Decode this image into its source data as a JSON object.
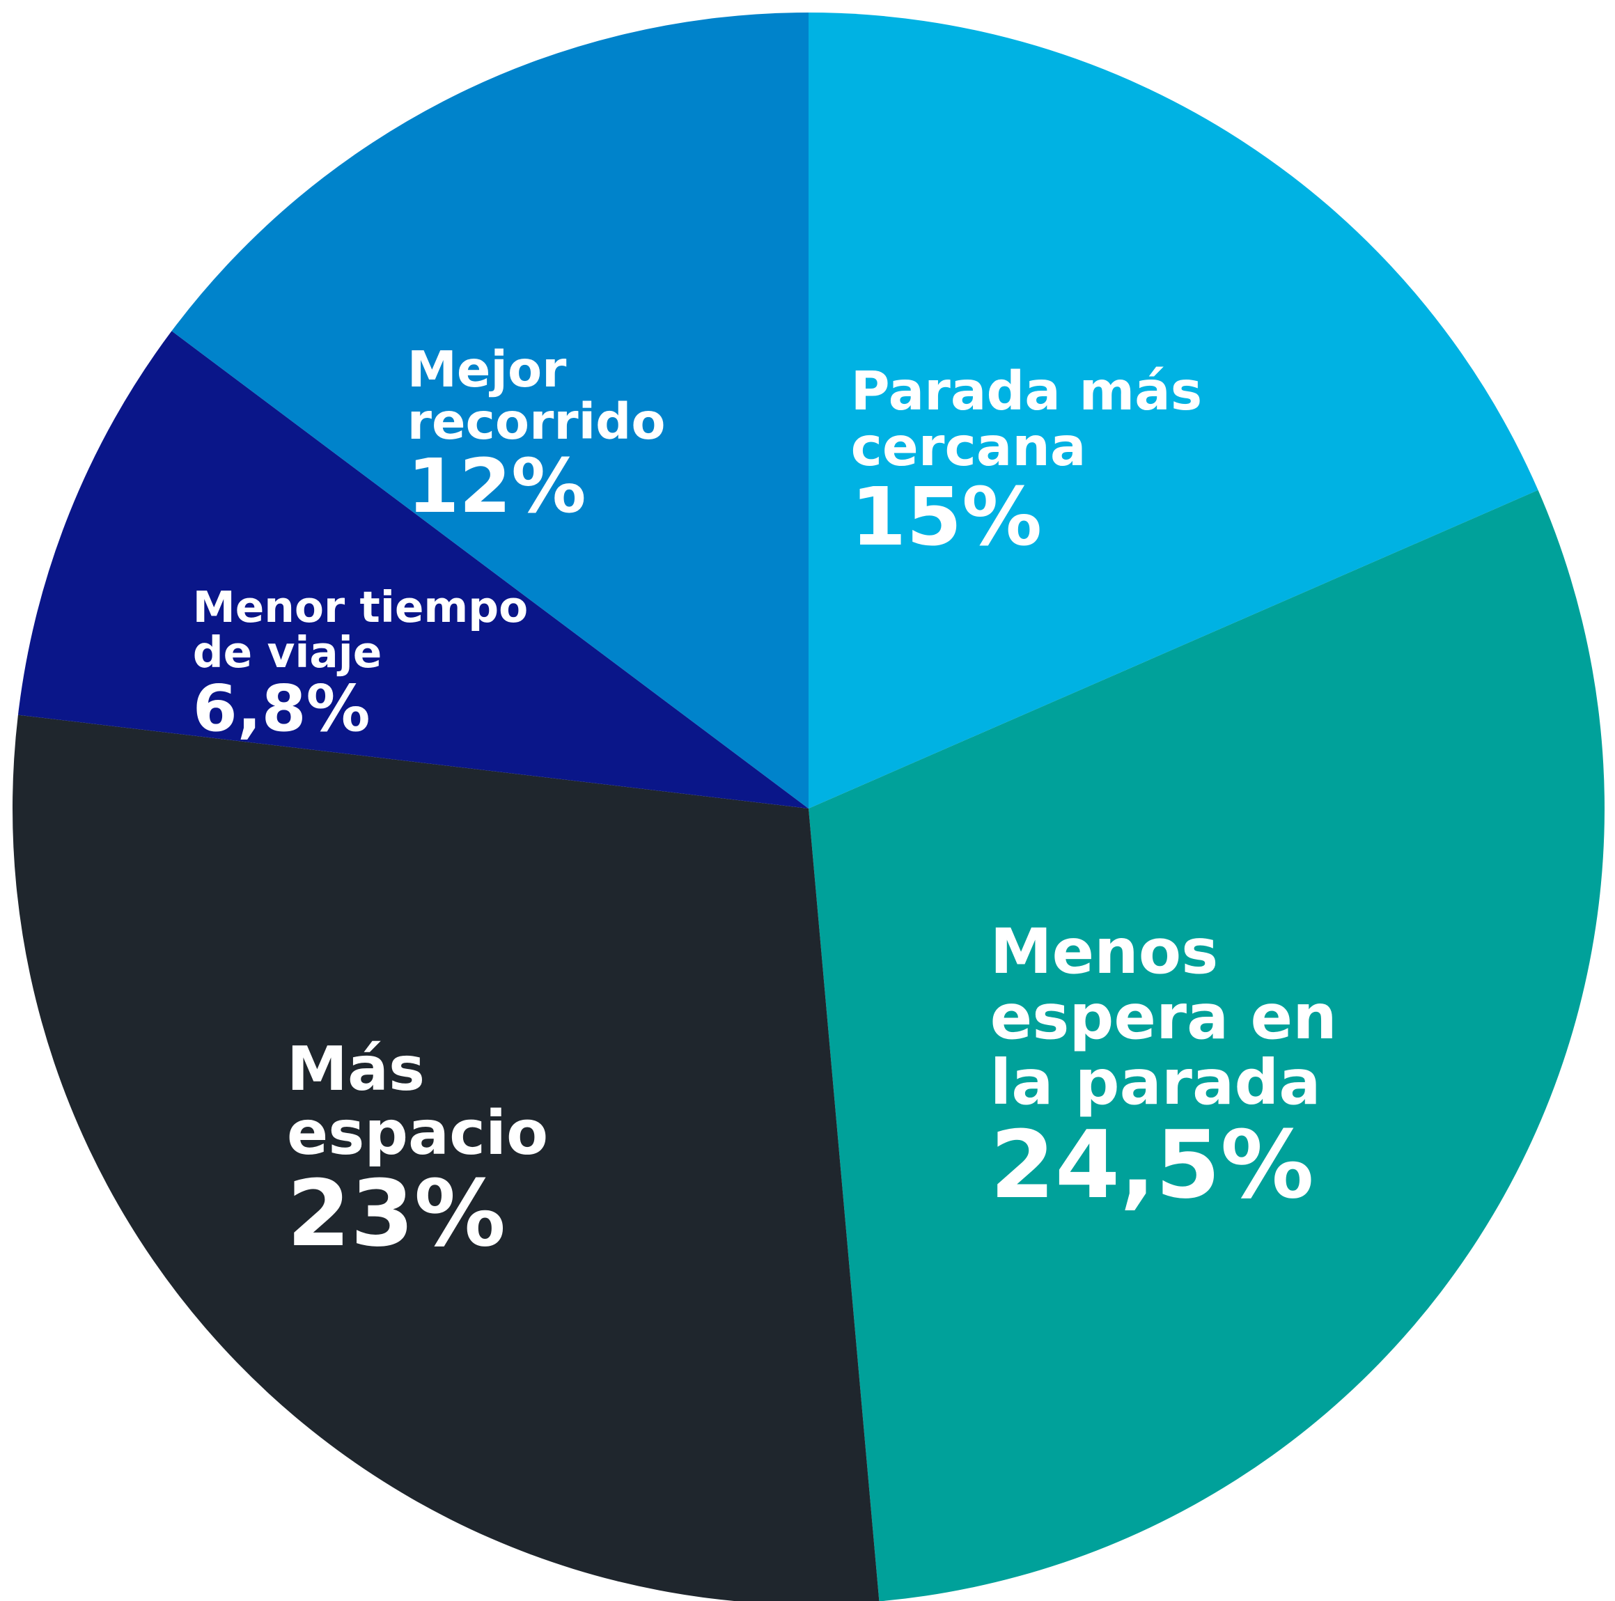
{
  "chart_data": {
    "type": "pie",
    "categories": [
      "Parada más cercana",
      "Menos espera en la parada",
      "Más espacio",
      "Menor tiempo de viaje",
      "Mejor recorrido"
    ],
    "values": [
      15,
      24.5,
      23,
      6.8,
      12
    ],
    "value_labels": [
      "15%",
      "24,5%",
      "23%",
      "6,8%",
      "12%"
    ],
    "colors": [
      "#00b2e3",
      "#00a19a",
      "#1f262d",
      "#0a1689",
      "#0083cb"
    ]
  }
}
